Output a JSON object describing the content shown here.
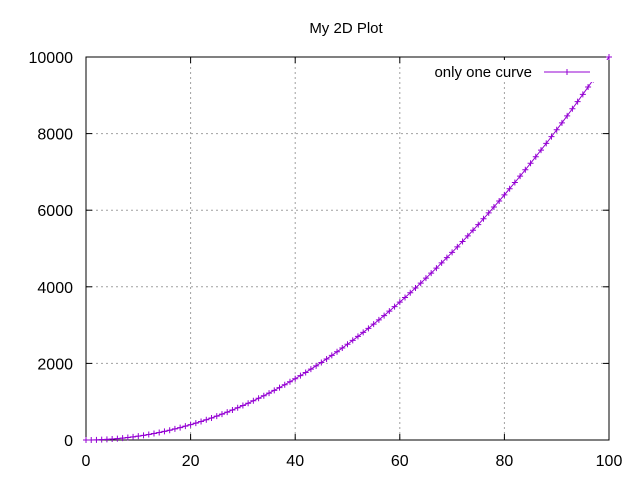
{
  "chart_data": {
    "type": "line",
    "title": "My 2D Plot",
    "xlabel": "",
    "ylabel": "",
    "xlim": [
      0,
      100
    ],
    "ylim": [
      0,
      10000
    ],
    "x_ticks": [
      0,
      20,
      40,
      60,
      80,
      100
    ],
    "y_ticks": [
      0,
      2000,
      4000,
      6000,
      8000,
      10000
    ],
    "grid": true,
    "legend_position": "top-right",
    "series": [
      {
        "name": "only one curve",
        "color": "#9400d3",
        "marker": "plus",
        "function": "y = x^2",
        "x_start": 0,
        "x_end": 100,
        "x_step": 1
      }
    ]
  }
}
